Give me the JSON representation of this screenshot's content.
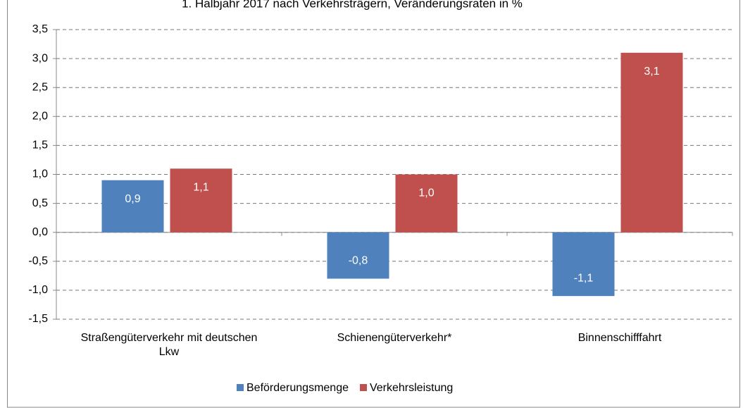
{
  "chart_data": {
    "type": "bar",
    "title": "1. Halbjahr 2017 nach Verkehrsträgern, Veränderungsraten in %",
    "categories": [
      "Straßengüterverkehr mit deutschen Lkw",
      "Schienengüterverkehr*",
      "Binnenschifffahrt"
    ],
    "series": [
      {
        "name": "Beförderungsmenge",
        "color": "#4f81bd",
        "values": [
          0.9,
          -0.8,
          -1.1
        ],
        "value_labels": [
          "0,9",
          "-0,8",
          "-1,1"
        ]
      },
      {
        "name": "Verkehrsleistung",
        "color": "#c0504d",
        "values": [
          1.1,
          1.0,
          3.1
        ],
        "value_labels": [
          "1,1",
          "1,0",
          "3,1"
        ]
      }
    ],
    "ylim": [
      -1.5,
      3.5
    ],
    "yticks": [
      {
        "value": -1.5,
        "label": "-1,5"
      },
      {
        "value": -1.0,
        "label": "-1,0"
      },
      {
        "value": -0.5,
        "label": "-0,5"
      },
      {
        "value": 0,
        "label": "0,0"
      },
      {
        "value": 0.5,
        "label": "0,5"
      },
      {
        "value": 1.0,
        "label": "1,0"
      },
      {
        "value": 1.5,
        "label": "1,5"
      },
      {
        "value": 2.0,
        "label": "2,0"
      },
      {
        "value": 2.5,
        "label": "2,5"
      },
      {
        "value": 3.0,
        "label": "3,0"
      },
      {
        "value": 3.5,
        "label": "3,5"
      }
    ],
    "grid": true,
    "legend": "bottom"
  }
}
